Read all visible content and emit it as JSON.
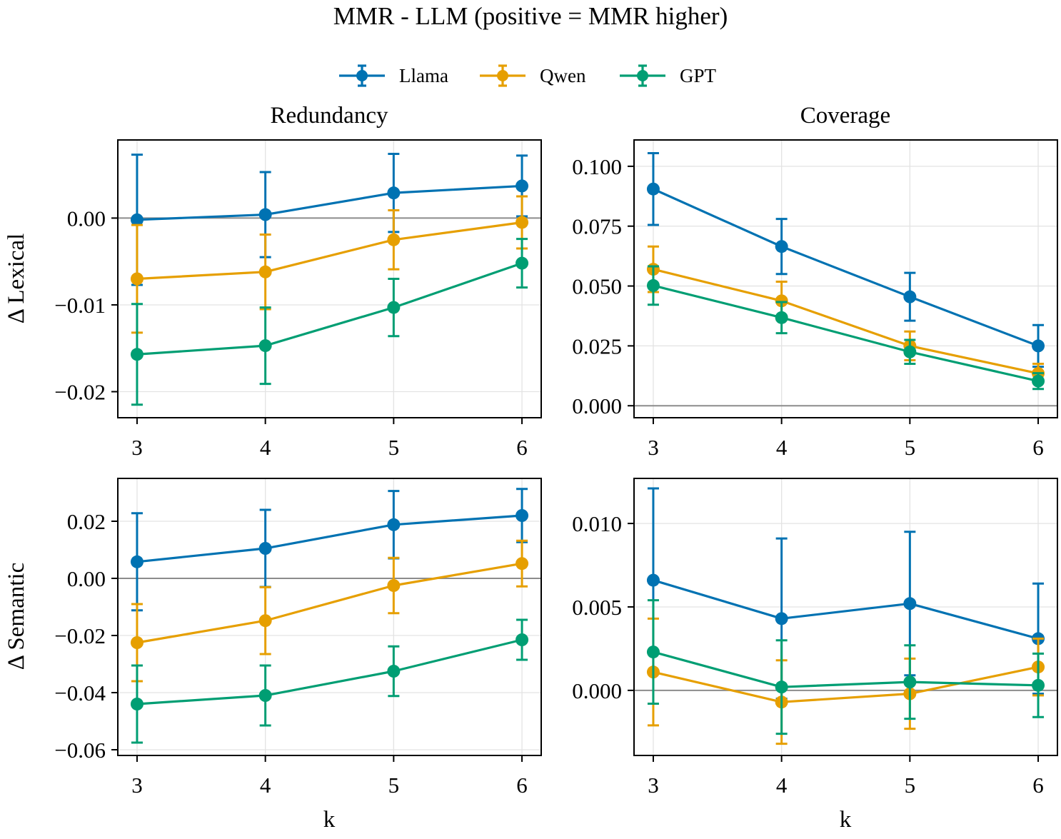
{
  "title": "MMR - LLM (positive = MMR higher)",
  "legend": [
    {
      "name": "Llama",
      "color": "#0072B2"
    },
    {
      "name": "Qwen",
      "color": "#E69F00"
    },
    {
      "name": "GPT",
      "color": "#009E73"
    }
  ],
  "column_titles": [
    "Redundancy",
    "Coverage"
  ],
  "row_labels": [
    "Δ Lexical",
    "Δ Semantic"
  ],
  "xlabel": "k",
  "chart_data": [
    {
      "type": "line",
      "panel": "Redundancy / Δ Lexical",
      "x": [
        3,
        4,
        5,
        6
      ],
      "xlim": [
        2.85,
        6.15
      ],
      "ylim": [
        -0.023,
        0.009
      ],
      "yticks": [
        -0.02,
        -0.01,
        0.0
      ],
      "ytick_labels": [
        "−0.02",
        "−0.01",
        "0.00"
      ],
      "series": [
        {
          "name": "Llama",
          "values": [
            -0.0002,
            0.0004,
            0.0029,
            0.0037
          ],
          "err": [
            0.0075,
            0.0049,
            0.0045,
            0.0035
          ]
        },
        {
          "name": "Qwen",
          "values": [
            -0.007,
            -0.0062,
            -0.0025,
            -0.0005
          ],
          "err": [
            0.0062,
            0.0043,
            0.0034,
            0.003
          ]
        },
        {
          "name": "GPT",
          "values": [
            -0.0157,
            -0.0147,
            -0.0103,
            -0.0052
          ],
          "err": [
            0.0058,
            0.0044,
            0.0033,
            0.0028
          ]
        }
      ]
    },
    {
      "type": "line",
      "panel": "Coverage / Δ Lexical",
      "x": [
        3,
        4,
        5,
        6
      ],
      "xlim": [
        2.85,
        6.15
      ],
      "ylim": [
        -0.005,
        0.111
      ],
      "yticks": [
        0.0,
        0.025,
        0.05,
        0.075,
        0.1
      ],
      "ytick_labels": [
        "0.000",
        "0.025",
        "0.050",
        "0.075",
        "0.100"
      ],
      "series": [
        {
          "name": "Llama",
          "values": [
            0.0905,
            0.0665,
            0.0455,
            0.025
          ],
          "err": [
            0.015,
            0.0115,
            0.01,
            0.0087
          ]
        },
        {
          "name": "Qwen",
          "values": [
            0.057,
            0.0438,
            0.025,
            0.0135
          ],
          "err": [
            0.0095,
            0.008,
            0.006,
            0.004
          ]
        },
        {
          "name": "GPT",
          "values": [
            0.0502,
            0.0368,
            0.0225,
            0.0103
          ],
          "err": [
            0.008,
            0.0065,
            0.005,
            0.0033
          ]
        }
      ]
    },
    {
      "type": "line",
      "panel": "Redundancy / Δ Semantic",
      "x": [
        3,
        4,
        5,
        6
      ],
      "xlim": [
        2.85,
        6.15
      ],
      "ylim": [
        -0.062,
        0.035
      ],
      "yticks": [
        -0.06,
        -0.04,
        -0.02,
        0.0,
        0.02
      ],
      "ytick_labels": [
        "−0.06",
        "−0.04",
        "−0.02",
        "0.00",
        "0.02"
      ],
      "series": [
        {
          "name": "Llama",
          "values": [
            0.0058,
            0.0105,
            0.0188,
            0.022
          ],
          "err": [
            0.017,
            0.0135,
            0.0118,
            0.0093
          ]
        },
        {
          "name": "Qwen",
          "values": [
            -0.0225,
            -0.0148,
            -0.0025,
            0.0052
          ],
          "err": [
            0.0135,
            0.0117,
            0.0097,
            0.008
          ]
        },
        {
          "name": "GPT",
          "values": [
            -0.044,
            -0.041,
            -0.0325,
            -0.0215
          ],
          "err": [
            0.0135,
            0.0105,
            0.0087,
            0.007
          ]
        }
      ]
    },
    {
      "type": "line",
      "panel": "Coverage / Δ Semantic",
      "x": [
        3,
        4,
        5,
        6
      ],
      "xlim": [
        2.85,
        6.15
      ],
      "ylim": [
        -0.0039,
        0.0127
      ],
      "yticks": [
        0.0,
        0.005,
        0.01
      ],
      "ytick_labels": [
        "0.000",
        "0.005",
        "0.010"
      ],
      "series": [
        {
          "name": "Llama",
          "values": [
            0.0066,
            0.0043,
            0.0052,
            0.0031
          ],
          "err": [
            0.0055,
            0.0048,
            0.0043,
            0.0033
          ]
        },
        {
          "name": "Qwen",
          "values": [
            0.0011,
            -0.0007,
            -0.0002,
            0.0014
          ],
          "err": [
            0.0032,
            0.0025,
            0.0021,
            0.0017
          ]
        },
        {
          "name": "GPT",
          "values": [
            0.0023,
            0.0002,
            0.0005,
            0.0003
          ],
          "err": [
            0.0031,
            0.0028,
            0.0022,
            0.0019
          ]
        }
      ]
    }
  ]
}
